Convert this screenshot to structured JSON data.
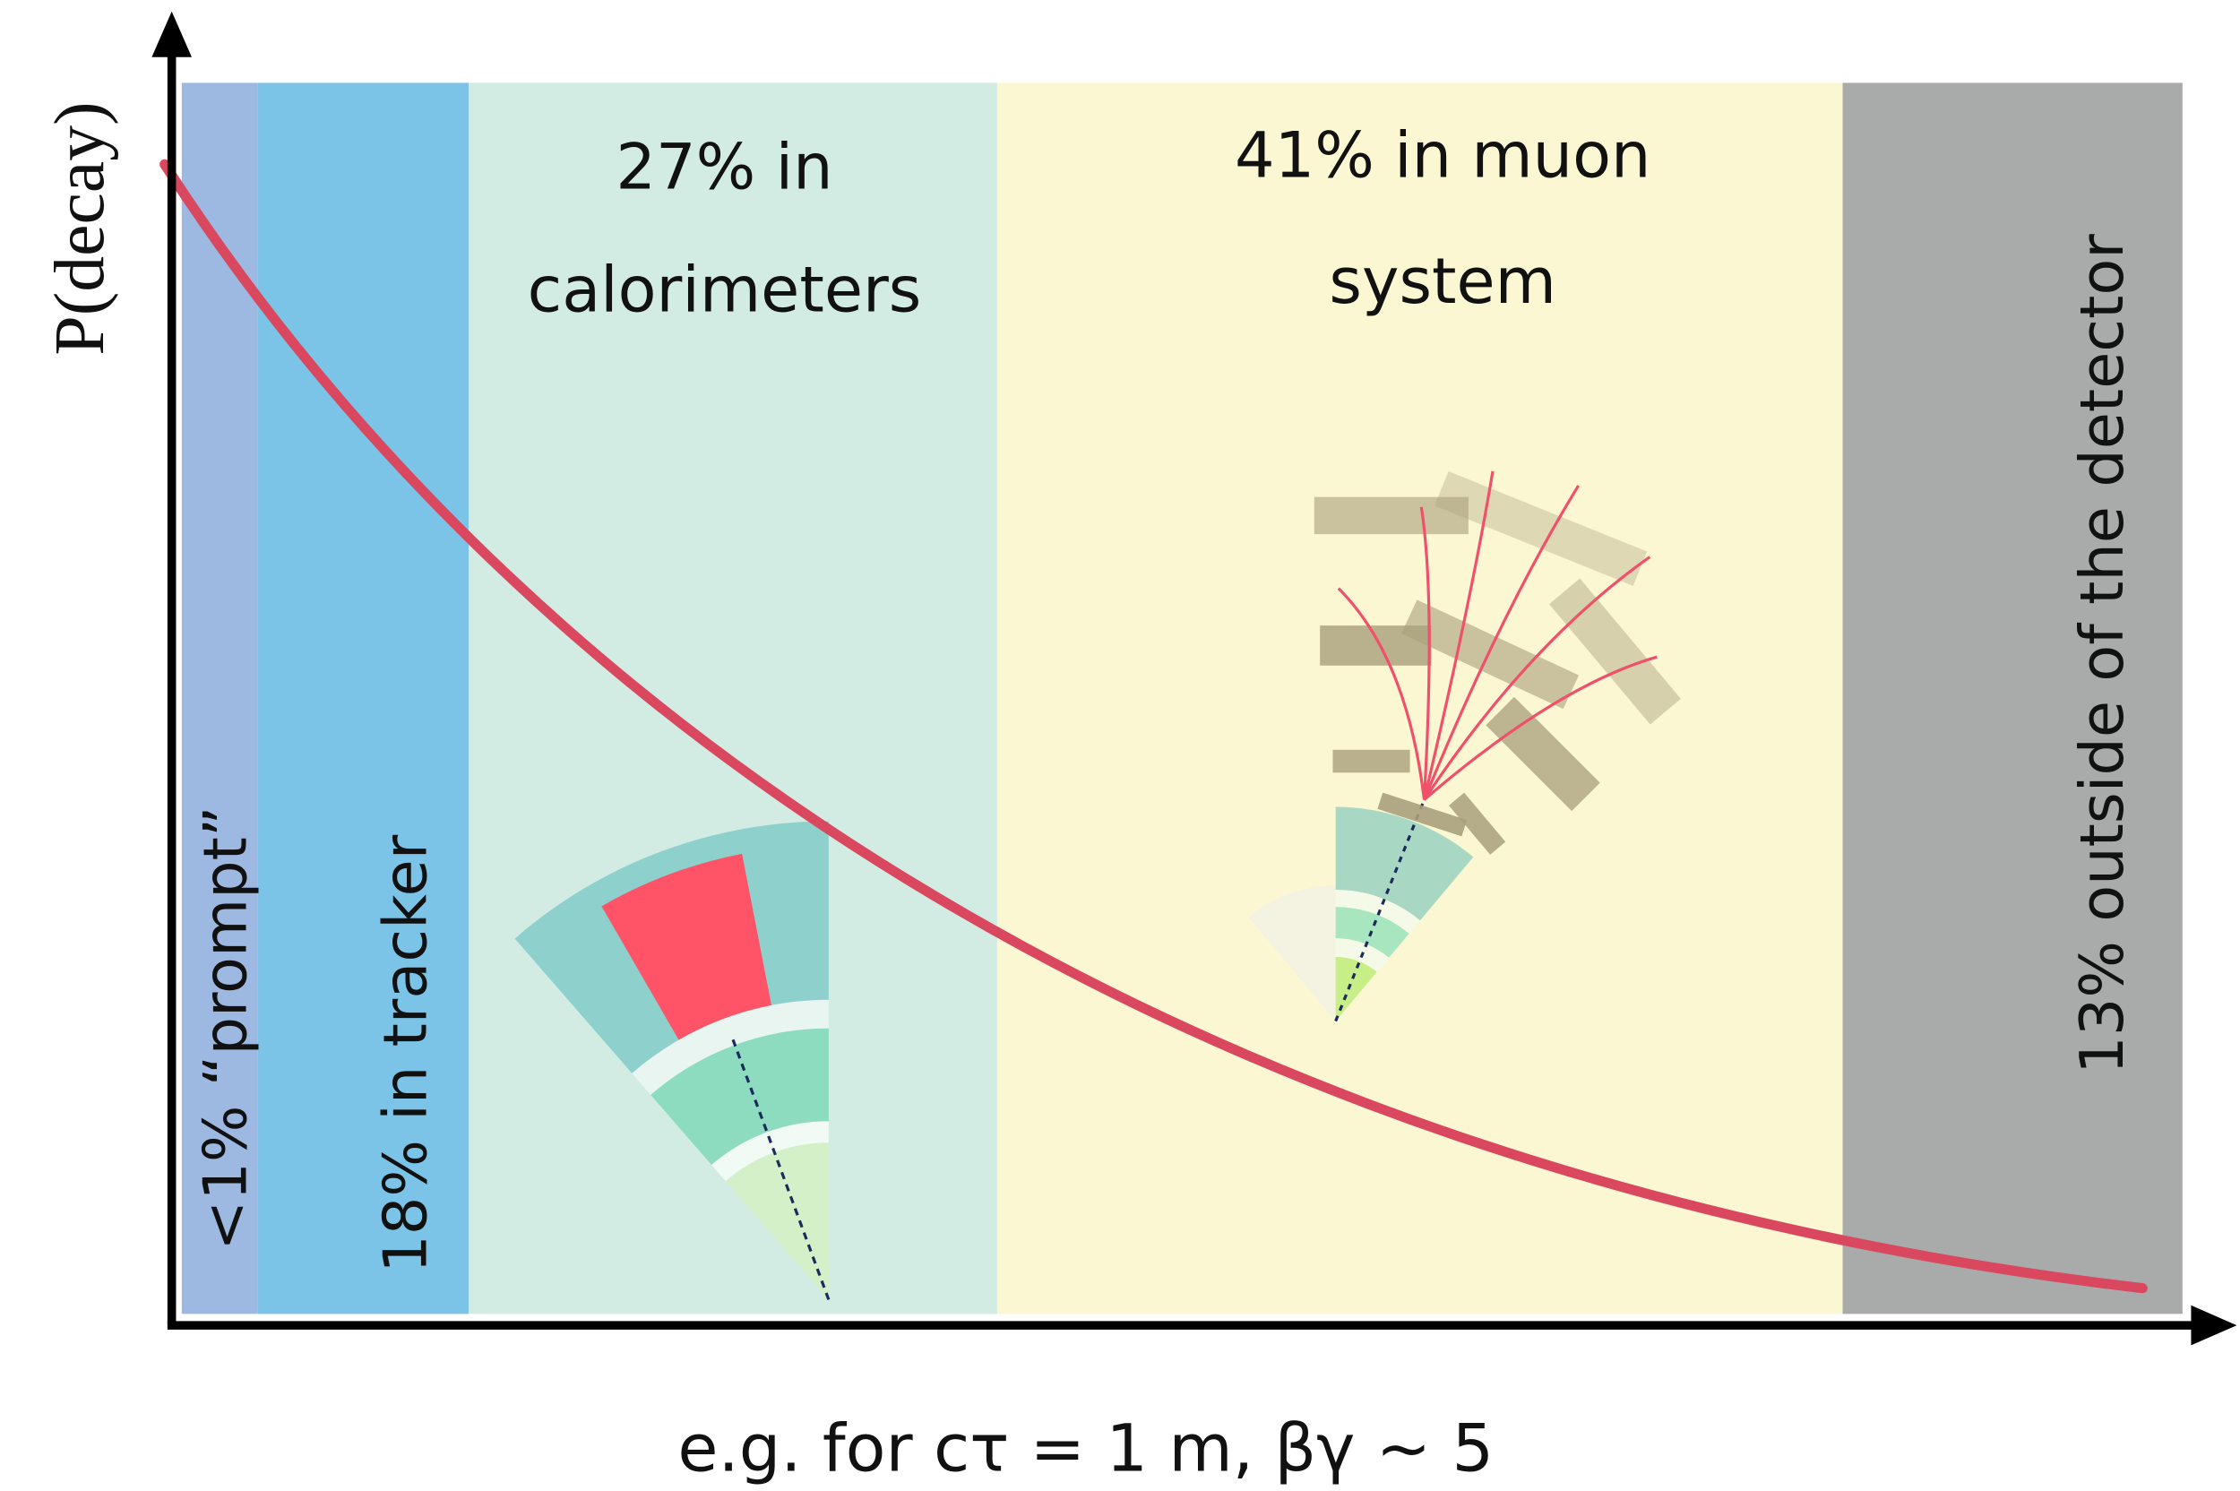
{
  "y_axis_label": "P(decay)",
  "x_axis_label": "e.g. for cτ = 1 m, βγ ~ 5",
  "regions": [
    {
      "label_lines": [
        "<1% “prompt”"
      ]
    },
    {
      "label_lines": [
        "18% in tracker"
      ]
    },
    {
      "label_lines": [
        "27% in",
        "calorimeters"
      ]
    },
    {
      "label_lines": [
        "41% in muon",
        "system"
      ]
    },
    {
      "label_lines": [
        "13% outside of the detector"
      ]
    }
  ]
}
